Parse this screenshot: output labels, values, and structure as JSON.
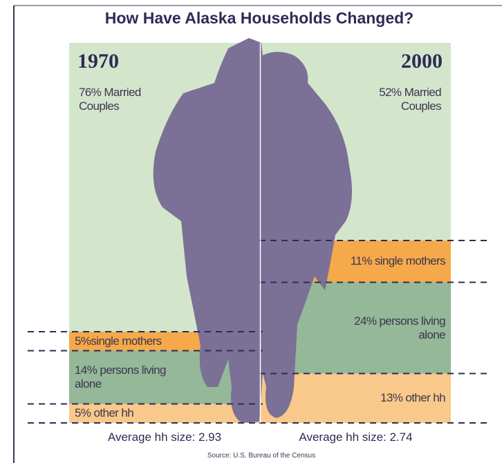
{
  "chart_data": {
    "type": "stacked_bar",
    "title": "How Have Alaska Households Changed?",
    "categories": [
      "1970",
      "2000"
    ],
    "ylim": [
      0,
      100
    ],
    "series": [
      {
        "color": "#f8c98a",
        "values": [
          5,
          13
        ],
        "value_labels": [
          "5% other hh",
          "13% other hh"
        ]
      },
      {
        "color": "#94b898",
        "values": [
          14,
          24
        ],
        "value_labels": [
          "14% persons living alone",
          "24% persons living alone"
        ]
      },
      {
        "color": "#f5a94a",
        "values": [
          5,
          11
        ],
        "value_labels": [
          "5%single mothers",
          "11% single mothers"
        ]
      },
      {
        "color": "#d3e6cc",
        "values": [
          76,
          52
        ],
        "value_labels": [
          "76% Married Couples",
          "52% Married Couples"
        ]
      }
    ],
    "annotations": [
      "Average hh size: 2.93",
      "Average hh size: 2.74"
    ],
    "source": "Source: U.S. Bureau of the Census"
  }
}
